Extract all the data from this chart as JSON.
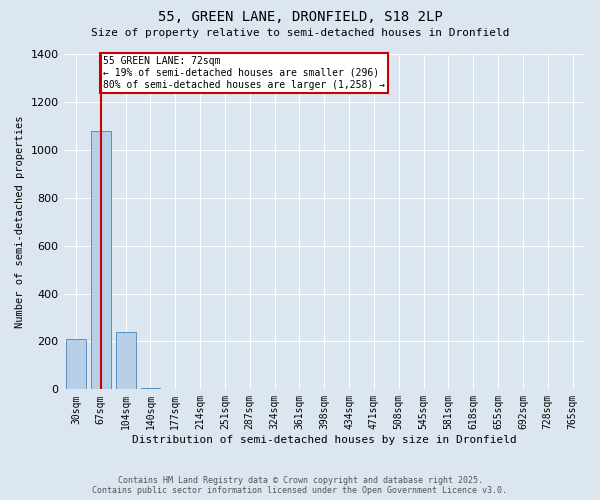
{
  "title": "55, GREEN LANE, DRONFIELD, S18 2LP",
  "subtitle": "Size of property relative to semi-detached houses in Dronfield",
  "xlabel": "Distribution of semi-detached houses by size in Dronfield",
  "ylabel": "Number of semi-detached properties",
  "categories": [
    "30sqm",
    "67sqm",
    "104sqm",
    "140sqm",
    "177sqm",
    "214sqm",
    "251sqm",
    "287sqm",
    "324sqm",
    "361sqm",
    "398sqm",
    "434sqm",
    "471sqm",
    "508sqm",
    "545sqm",
    "581sqm",
    "618sqm",
    "655sqm",
    "692sqm",
    "728sqm",
    "765sqm"
  ],
  "values": [
    210,
    1080,
    240,
    5,
    2,
    1,
    1,
    0,
    0,
    0,
    0,
    0,
    0,
    0,
    0,
    0,
    0,
    0,
    0,
    0,
    0
  ],
  "bar_color": "#b8cfe8",
  "bar_edge_color": "#5a8fc0",
  "annotation_text": "55 GREEN LANE: 72sqm\n← 19% of semi-detached houses are smaller (296)\n80% of semi-detached houses are larger (1,258) →",
  "annotation_box_color": "#ffffff",
  "annotation_box_edge_color": "#cc0000",
  "annotation_text_color": "#000000",
  "line_color": "#cc0000",
  "line_x_index": 1.0,
  "ylim": [
    0,
    1400
  ],
  "yticks": [
    0,
    200,
    400,
    600,
    800,
    1000,
    1200,
    1400
  ],
  "background_color": "#dce6f0",
  "grid_color": "#ffffff",
  "footer_line1": "Contains HM Land Registry data © Crown copyright and database right 2025.",
  "footer_line2": "Contains public sector information licensed under the Open Government Licence v3.0."
}
